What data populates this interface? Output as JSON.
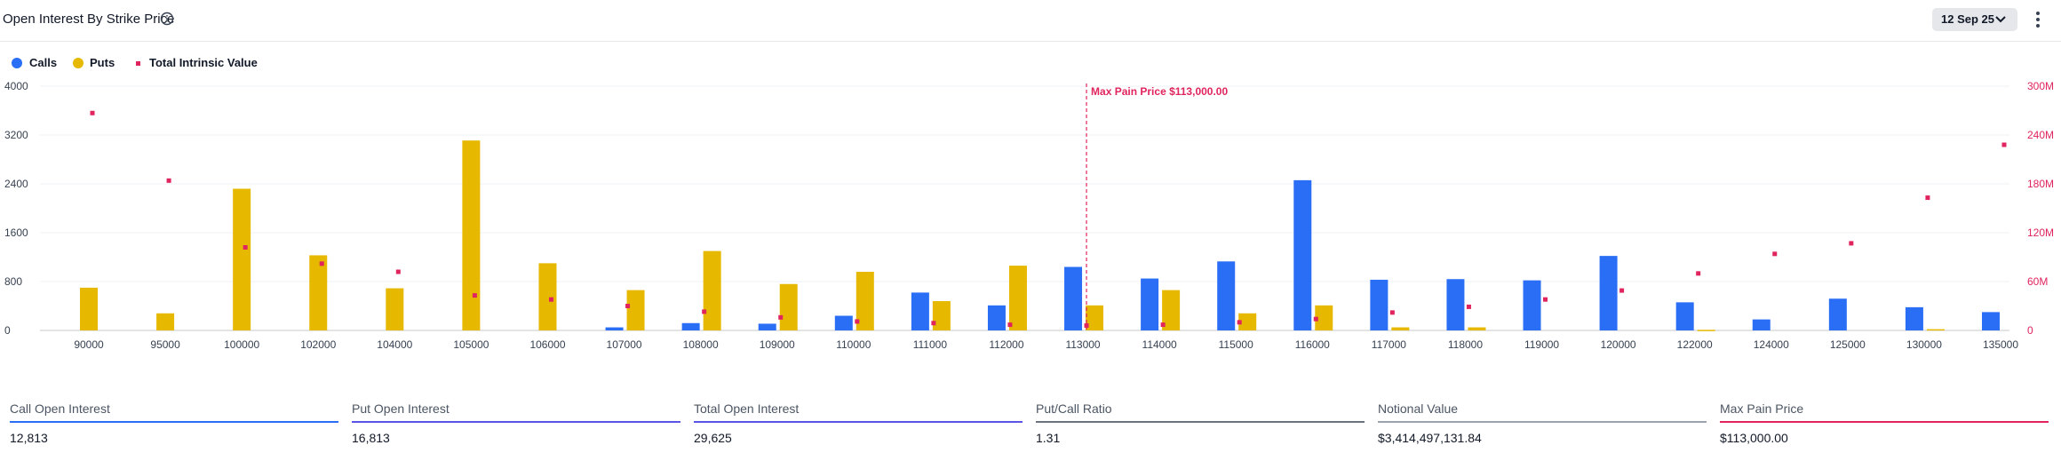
{
  "header": {
    "title": "Open Interest By Strike Price",
    "date_label": "12 Sep 25"
  },
  "legend": [
    {
      "label": "Calls",
      "color": "#2a6ef5",
      "shape": "circle"
    },
    {
      "label": "Puts",
      "color": "#e6b800",
      "shape": "circle"
    },
    {
      "label": "Total Intrinsic Value",
      "color": "#e0245e",
      "shape": "square"
    }
  ],
  "chart_data": {
    "type": "bar",
    "categories": [
      "90000",
      "95000",
      "100000",
      "102000",
      "104000",
      "105000",
      "106000",
      "107000",
      "108000",
      "109000",
      "110000",
      "111000",
      "112000",
      "113000",
      "114000",
      "115000",
      "116000",
      "117000",
      "118000",
      "119000",
      "120000",
      "122000",
      "124000",
      "125000",
      "130000",
      "135000"
    ],
    "series": [
      {
        "name": "Calls",
        "axis": "left",
        "color": "#2a6ef5",
        "values": [
          0,
          0,
          0,
          0,
          0,
          0,
          0,
          50,
          120,
          110,
          240,
          620,
          410,
          1040,
          850,
          1130,
          2460,
          830,
          840,
          820,
          1220,
          460,
          180,
          520,
          380,
          300
        ]
      },
      {
        "name": "Puts",
        "axis": "left",
        "color": "#e6b800",
        "values": [
          700,
          280,
          2320,
          1230,
          690,
          3110,
          1100,
          660,
          1300,
          760,
          960,
          480,
          1060,
          410,
          660,
          280,
          410,
          50,
          50,
          0,
          0,
          10,
          0,
          0,
          20,
          0
        ]
      },
      {
        "name": "Total Intrinsic Value",
        "axis": "right",
        "type": "scatter",
        "color": "#e0245e",
        "values": [
          267,
          184,
          102,
          82,
          72,
          43,
          38,
          30,
          23,
          16,
          11,
          9,
          7,
          6,
          7,
          10,
          14,
          22,
          29,
          38,
          49,
          70,
          94,
          107,
          163,
          228
        ]
      }
    ],
    "y_left": {
      "min": 0,
      "max": 4000,
      "ticks": [
        "0",
        "800",
        "1600",
        "2400",
        "3200",
        "4000"
      ],
      "tick_values": [
        0,
        800,
        1600,
        2400,
        3200,
        4000
      ]
    },
    "y_right": {
      "min": 0,
      "max": 300,
      "ticks": [
        "0",
        "60M",
        "120M",
        "180M",
        "240M",
        "300M"
      ],
      "tick_values": [
        0,
        60,
        120,
        180,
        240,
        300
      ],
      "unit": "M"
    },
    "max_pain": {
      "strike": "113000",
      "label": "Max Pain Price $113,000.00",
      "color": "#e0245e"
    },
    "grid": true,
    "legend_position": "top-left"
  },
  "metrics": [
    {
      "label": "Call Open Interest",
      "value": "12,813",
      "color": "#2a6ef5"
    },
    {
      "label": "Put Open Interest",
      "value": "16,813",
      "color": "#5b55e6"
    },
    {
      "label": "Total Open Interest",
      "value": "29,625",
      "color": "#5b55e6"
    },
    {
      "label": "Put/Call Ratio",
      "value": "1.31",
      "color": "#6b7280"
    },
    {
      "label": "Notional Value",
      "value": "$3,414,497,131.84",
      "color": "#9ca3af"
    },
    {
      "label": "Max Pain Price",
      "value": "$113,000.00",
      "color": "#e0245e"
    }
  ]
}
